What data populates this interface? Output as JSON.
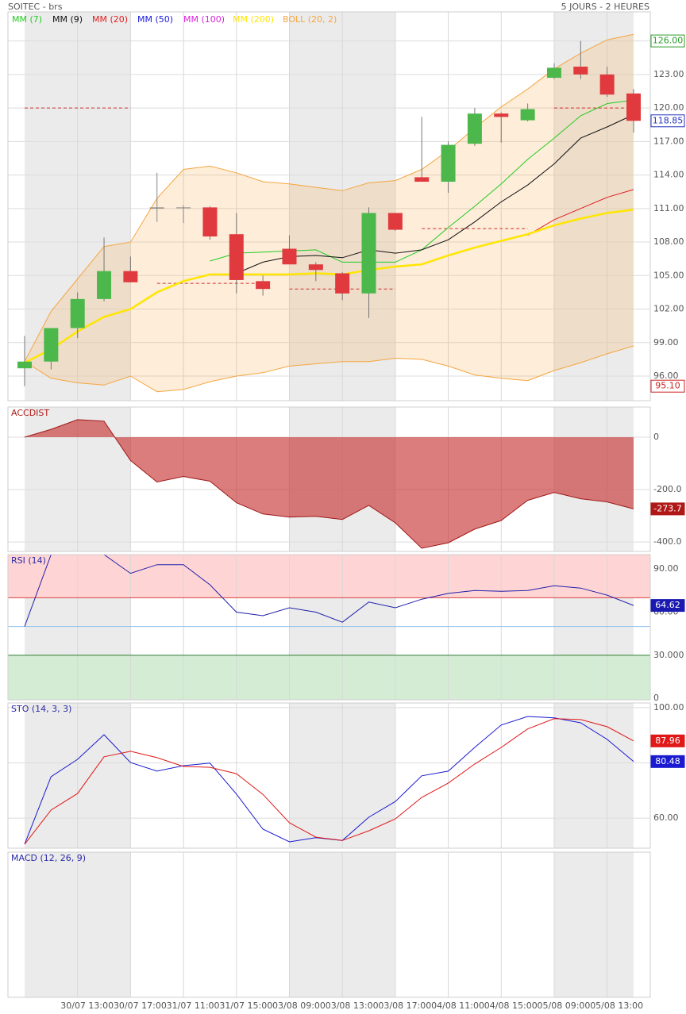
{
  "header": {
    "title": "SOITEC - brs",
    "period": "5 JOURS - 2 HEURES"
  },
  "chart_data": [
    {
      "type": "candlestick",
      "categories": [
        null,
        null,
        "30/07 13:00",
        null,
        "30/07 17:00",
        null,
        "31/07 11:00",
        null,
        "31/07 15:00",
        null,
        "03/08 09:00",
        null,
        "03/08 13:00",
        null,
        "03/08 17:00",
        null,
        "04/08 11:00",
        null,
        "04/08 15:00",
        null,
        "05/08 09:00",
        null,
        "05/08 13:00",
        null
      ],
      "open": [
        96.7,
        97.3,
        100.3,
        102.9,
        105.4,
        111.1,
        111.1,
        111.1,
        108.7,
        104.5,
        107.4,
        106.0,
        105.2,
        103.4,
        110.6,
        113.8,
        113.4,
        116.8,
        119.5,
        118.9,
        122.7,
        123.7,
        123.0,
        121.3
      ],
      "high": [
        99.6,
        100.3,
        103.5,
        108.4,
        106.7,
        114.2,
        111.3,
        111.2,
        110.6,
        105.0,
        108.6,
        106.2,
        105.3,
        111.1,
        110.6,
        119.2,
        117.0,
        120.0,
        119.6,
        120.4,
        124.0,
        126.0,
        123.7,
        121.7
      ],
      "low": [
        95.1,
        96.6,
        99.4,
        102.7,
        104.4,
        109.8,
        109.7,
        108.2,
        103.4,
        103.2,
        106.0,
        104.5,
        102.8,
        101.2,
        109.0,
        113.4,
        112.4,
        116.6,
        116.9,
        118.8,
        122.6,
        122.6,
        121.0,
        117.8
      ],
      "close": [
        97.3,
        100.3,
        102.9,
        105.4,
        104.4,
        111.0,
        111.1,
        108.5,
        104.6,
        103.8,
        106.0,
        105.5,
        103.4,
        110.6,
        109.1,
        113.4,
        116.7,
        119.5,
        119.2,
        119.9,
        123.6,
        123.0,
        121.2,
        118.85
      ],
      "up_color": "#4cb84c",
      "down_color": "#e0393e",
      "doji_color": "#888888",
      "series": [
        {
          "name": "MM (7)",
          "color": "#22cc22",
          "width": 1,
          "values": [
            null,
            null,
            null,
            null,
            null,
            null,
            null,
            106.3,
            107.0,
            107.1,
            107.2,
            107.3,
            106.2,
            106.2,
            106.2,
            107.3,
            109.3,
            111.2,
            113.2,
            115.4,
            117.3,
            119.3,
            120.4,
            120.7
          ]
        },
        {
          "name": "MM (9)",
          "color": "#111111",
          "width": 1,
          "values": [
            null,
            null,
            null,
            null,
            null,
            null,
            null,
            null,
            105.2,
            106.2,
            106.7,
            106.8,
            106.6,
            107.3,
            107.0,
            107.3,
            108.2,
            109.8,
            111.6,
            113.1,
            115.0,
            117.3,
            118.3,
            119.4
          ]
        },
        {
          "name": "MM (20)",
          "color": "#e02020",
          "width": 1,
          "values": [
            null,
            null,
            null,
            null,
            null,
            null,
            null,
            null,
            null,
            null,
            null,
            null,
            null,
            null,
            null,
            null,
            null,
            null,
            null,
            108.6,
            110.0,
            111.0,
            112.0,
            112.7
          ]
        },
        {
          "name": "MM (50)",
          "color": "#1a1add",
          "width": 1,
          "values": [
            null,
            null,
            null,
            null,
            null,
            null,
            null,
            null,
            null,
            null,
            null,
            null,
            null,
            null,
            null,
            null,
            null,
            null,
            null,
            null,
            null,
            null,
            null,
            null
          ]
        },
        {
          "name": "MM (100)",
          "color": "#dd22dd",
          "width": 1,
          "values": [
            null,
            null,
            null,
            null,
            null,
            null,
            null,
            null,
            null,
            null,
            null,
            null,
            null,
            null,
            null,
            null,
            null,
            null,
            null,
            null,
            null,
            null,
            null,
            null
          ]
        },
        {
          "name": "MM (200)",
          "color": "#ffe600",
          "width": 2.5,
          "values": [
            97.2,
            98.4,
            100.0,
            101.3,
            102.0,
            103.5,
            104.5,
            105.1,
            105.1,
            105.1,
            105.1,
            105.2,
            105.1,
            105.5,
            105.8,
            106.0,
            106.8,
            107.5,
            108.1,
            108.7,
            109.5,
            110.1,
            110.6,
            110.9
          ]
        }
      ],
      "bollinger": {
        "name": "BOLL (20, 2)",
        "color": "#f5a640",
        "upper": [
          97.3,
          101.8,
          104.7,
          107.6,
          108.0,
          111.9,
          114.5,
          114.8,
          114.2,
          113.4,
          113.2,
          112.9,
          112.6,
          113.3,
          113.5,
          114.5,
          116.2,
          118.2,
          120.1,
          121.7,
          123.5,
          124.9,
          126.1,
          126.6
        ],
        "lower": [
          97.3,
          95.8,
          95.4,
          95.2,
          96.0,
          94.6,
          94.8,
          95.5,
          96.0,
          96.3,
          96.9,
          97.1,
          97.3,
          97.3,
          97.6,
          97.5,
          96.9,
          96.1,
          95.8,
          95.6,
          96.5,
          97.2,
          98.0,
          98.7
        ]
      },
      "reference_lines": [
        {
          "value": 120.0,
          "from": 0,
          "to": 4,
          "color": "#d03030"
        },
        {
          "value": 104.3,
          "from": 5,
          "to": 9,
          "color": "#d03030"
        },
        {
          "value": 103.8,
          "from": 10,
          "to": 14,
          "color": "#d03030"
        },
        {
          "value": 109.2,
          "from": 15,
          "to": 19,
          "color": "#d03030"
        },
        {
          "value": 120.0,
          "from": 20,
          "to": 23,
          "color": "#d03030"
        }
      ],
      "ylim": [
        93.8,
        128.6
      ],
      "yticks": [
        {
          "value": 96,
          "label": "96.00"
        },
        {
          "value": 99,
          "label": "99.00"
        },
        {
          "value": 102,
          "label": "102.00"
        },
        {
          "value": 105,
          "label": "105.00"
        },
        {
          "value": 108,
          "label": "108.00"
        },
        {
          "value": 111,
          "label": "111.00"
        },
        {
          "value": 114,
          "label": "114.00"
        },
        {
          "value": 117,
          "label": "117.00"
        },
        {
          "value": 120,
          "label": "120.00"
        },
        {
          "value": 123,
          "label": "123.00"
        },
        {
          "value": 126,
          "label": "126.00"
        }
      ],
      "markers": [
        {
          "value": 126,
          "label": "126.00",
          "color": "#2a9d2a",
          "filled": false
        },
        {
          "value": 118.85,
          "label": "118.85",
          "color": "#2233bb",
          "filled": false
        },
        {
          "value": 95.1,
          "label": "95.10",
          "color": "#cc2222",
          "filled": false
        }
      ],
      "grid": true
    },
    {
      "type": "area",
      "title": "ACCDIST",
      "color": "#c83838",
      "values": [
        0,
        30,
        67,
        61,
        -89,
        -171,
        -150,
        -168,
        -250,
        -293,
        -305,
        -302,
        -314,
        -260,
        -327,
        -424,
        -403,
        -351,
        -318,
        -241,
        -211,
        -235,
        -247,
        -273.7
      ],
      "ylim": [
        -436,
        115
      ],
      "yticks": [
        0,
        {
          "value": -200,
          "label": "-200.0"
        },
        {
          "value": -400,
          "label": "-400.0"
        }
      ],
      "markers": [
        {
          "value": -273.7,
          "label": "-273.7",
          "color": "#b01818",
          "filled": true
        }
      ],
      "grid": true
    },
    {
      "type": "line",
      "title": "RSI (14)",
      "series": [
        {
          "color": "#2020aa",
          "values": [
            50,
            100,
            100,
            100,
            87,
            93,
            93,
            79,
            60,
            57.5,
            63,
            60,
            53,
            67,
            63,
            69,
            73,
            75,
            74.5,
            75,
            78.3,
            76.7,
            71.8,
            64.62
          ]
        }
      ],
      "zones": [
        {
          "from": 70,
          "to": 100,
          "color": "#ffd4d4"
        },
        {
          "from": -1,
          "to": 30,
          "color": "#d4ecd4"
        }
      ],
      "levels": [
        {
          "value": 70,
          "color": "#d84040"
        },
        {
          "value": 50,
          "color": "#8ec0ee"
        },
        {
          "value": 30,
          "color": "#2e7d32"
        }
      ],
      "ylim": [
        -1,
        100
      ],
      "yticks": [
        {
          "value": 90,
          "label": "90.00"
        },
        {
          "value": 60,
          "label": "60.00"
        },
        {
          "value": 30,
          "label": "30.000"
        },
        0
      ],
      "markers": [
        {
          "value": 64.62,
          "label": "64.62",
          "color": "#1a1ab0",
          "filled": true
        }
      ],
      "grid": false
    },
    {
      "type": "line",
      "title": "STO (14, 3, 3)",
      "series": [
        {
          "color": "#1a1ad0",
          "values": [
            50.5,
            75,
            81.3,
            90.2,
            80.1,
            77,
            79,
            79.9,
            68.7,
            56,
            51.4,
            52.9,
            51.9,
            60.3,
            66,
            75.3,
            77,
            85.6,
            93.7,
            96.8,
            96.3,
            94.5,
            88.5,
            80.48
          ]
        },
        {
          "color": "#e01818",
          "values": [
            50.5,
            62.9,
            68.9,
            82.2,
            84.2,
            81.9,
            78.7,
            78.4,
            76.1,
            68.6,
            58.3,
            53.1,
            51.9,
            55.4,
            59.7,
            67.5,
            72.7,
            79.6,
            85.6,
            92.3,
            96,
            95.7,
            93.1,
            87.96
          ]
        }
      ],
      "ylim": [
        49.1,
        101.7
      ],
      "yticks": [
        {
          "value": 100,
          "label": "100.00"
        },
        {
          "value": 80,
          "label": "80.00"
        },
        {
          "value": 60,
          "label": "60.00"
        }
      ],
      "markers": [
        {
          "value": 87.96,
          "label": "87.96",
          "color": "#e01818",
          "filled": true
        },
        {
          "value": 80.48,
          "label": "80.48",
          "color": "#1a1ad0",
          "filled": true
        }
      ],
      "grid": true
    },
    {
      "type": "line",
      "title": "MACD (12, 26, 9)",
      "series": [],
      "grid": false
    }
  ]
}
